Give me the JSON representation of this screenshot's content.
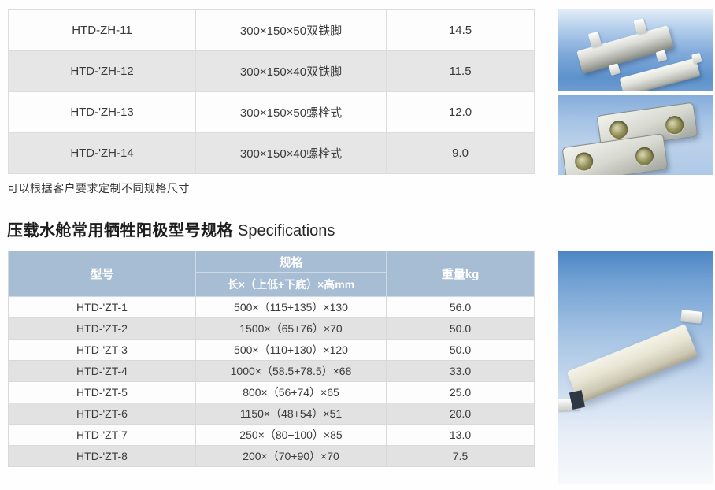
{
  "colors": {
    "header_bg": "#a7bdd3",
    "row_alt_gray_zh": "#e6e6e6",
    "row_alt_gray_zt": "#e2e2e2",
    "photo_blue": "#5d92cb",
    "text": "#3a3a3a"
  },
  "table_zh": {
    "rows": [
      {
        "model": "HTD-ZH-11",
        "spec": "300×150×50双铁脚",
        "weight": "14.5"
      },
      {
        "model": "HTD-'ZH-12",
        "spec": "300×150×40双铁脚",
        "weight": "11.5"
      },
      {
        "model": "HTD-'ZH-13",
        "spec": "300×150×50螺栓式",
        "weight": "12.0"
      },
      {
        "model": "HTD-'ZH-14",
        "spec": "300×150×40螺栓式",
        "weight": "9.0"
      }
    ]
  },
  "note": "可以根据客户要求定制不同规格尺寸",
  "heading": {
    "zh": "压载水舱常用牺牲阳极型号规格",
    "en": "Specifications"
  },
  "table_zt": {
    "headers": {
      "model": "型号",
      "spec": "规格",
      "spec_sub": "长×（上低+下底）×高mm",
      "weight": "重量kg"
    },
    "rows": [
      {
        "model": "HTD-'ZT-1",
        "spec": "500×（115+135）×130",
        "weight": "56.0"
      },
      {
        "model": "HTD-'ZT-2",
        "spec": "1500×（65+76）×70",
        "weight": "50.0"
      },
      {
        "model": "HTD-'ZT-3",
        "spec": "500×（110+130）×120",
        "weight": "50.0"
      },
      {
        "model": "HTD-'ZT-4",
        "spec": "1000×（58.5+78.5）×68",
        "weight": "33.0"
      },
      {
        "model": "HTD-'ZT-5",
        "spec": "800×（56+74）×65",
        "weight": "25.0"
      },
      {
        "model": "HTD-'ZT-6",
        "spec": "1150×（48+54）×51",
        "weight": "20.0"
      },
      {
        "model": "HTD-'ZT-7",
        "spec": "250×（80+100）×85",
        "weight": "13.0"
      },
      {
        "model": "HTD-'ZT-8",
        "spec": "200×（70+90）×70",
        "weight": "7.5"
      }
    ]
  }
}
